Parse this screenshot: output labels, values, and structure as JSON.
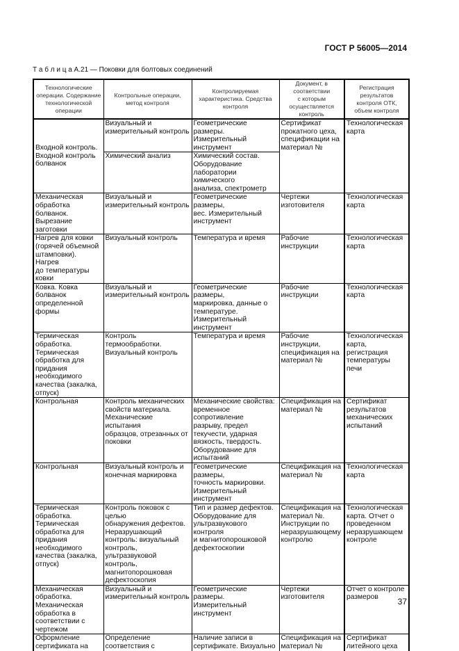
{
  "header": {
    "standard": "ГОСТ Р 56005—2014"
  },
  "caption": "Т а б л и ц а А.21 — Поковки для болтовых соединений",
  "columns": [
    "Технологические\nоперации. Содержание\nтехнологической\nоперации",
    "Контрольные операции,\nметод контроля",
    "Контролируемая\nхарактеристика. Средства\nконтроля",
    "Документ, в\nсоответствии\nс которым\nосуществляется\nконтроль",
    "Регистрация\nрезультатов\nконтроля ОТК,\nобъем контроля"
  ],
  "row1": {
    "operation": "Входной контроль.\nВходной контроль\nболванок",
    "sub": [
      {
        "method": "Визуальный и\nизмерительный контроль",
        "characteristic": "Геометрические размеры.\nИзмерительный\nинструмент"
      },
      {
        "method": "Химический анализ",
        "characteristic": "Химический состав.\nОборудование\nлаборатории химического\nанализа, спектрометр"
      }
    ],
    "document": "Сертификат\nпрокатного цеха,\nспецификации на\nматериал №",
    "registration": "Технологическая\nкарта"
  },
  "rows": [
    {
      "operation": "Механическая\nобработка болванок.\nВырезание заготовки",
      "method": "Визуальный и\nизмерительный контроль",
      "characteristic": "Геометрические размеры,\nвес. Измерительный\nинструмент",
      "document": "Чертежи\nизготовителя",
      "registration": "Технологическая\nкарта"
    },
    {
      "operation": "Нагрев для ковки\n(горячей объемной\nштамповки). Нагрев\nдо температуры\nковки",
      "method": "Визуальный контроль",
      "characteristic": "Температура и время",
      "document": "Рабочие\nинструкции",
      "registration": "Технологическая\nкарта"
    },
    {
      "operation": "Ковка. Ковка\nболванок\nопределенной\nформы",
      "method": "Визуальный и\nизмерительный контроль",
      "characteristic": "Геометрические размеры,\nмаркировка, данные о\nтемпературе.\nИзмерительный\nинструмент",
      "document": "Рабочие\nинструкции",
      "registration": "Технологическая\nкарта"
    },
    {
      "operation": "Термическая\nобработка.\nТермическая\nобработка для\nпридания\nнеобходимого\nкачества (закалка,\nотпуск)",
      "method": "Контроль\nтермообработки.\nВизуальный контроль",
      "characteristic": "Температура и время",
      "document": "Рабочие\nинструкции,\nспецификация на\nматериал №",
      "registration": "Технологическая\nкарта,\nрегистрация\nтемпературы\nпечи"
    },
    {
      "operation": "Контрольная",
      "method": "Контроль механических\nсвойств материала.\nМеханические испытания\nобразцов, отрезанных от\nпоковки",
      "characteristic": "Механические свойства:\nвременное сопротивление\nразрыву, предел\nтекучести, ударная\nвязкость, твердость.\nОборудование для\nиспытаний",
      "document": "Спецификация на\nматериал №",
      "registration": "Сертификат\nрезультатов\nмеханических\nиспытаний"
    },
    {
      "operation": "Контрольная",
      "method": "Визуальный контроль и\nконечная маркировка",
      "characteristic": "Геометрические размеры,\nточность маркировки.\nИзмерительный\nинструмент",
      "document": "Спецификация на\nматериал №",
      "registration": "Технологическая\nкарта"
    },
    {
      "operation": "Термическая\nобработка.\nТермическая\nобработка для\nпридания\nнеобходимого\nкачества (закалка,\nотпуск)",
      "method": "Контроль поковок с целью\nобнаружения дефектов.\nНеразрушающий\nконтроль: визуальный\nконтроль, ультразвуковой\nконтроль,\nмагнитопорошковая\nдефектоскопия",
      "characteristic": "Тип и размер дефектов.\nОборудование для\nультразвукового контроля\nи магнитопорошковой\nдефектоскопии",
      "document": "Спецификация на\nматериал №.\nИнструкции по\nнеразрушающему\nконтролю",
      "registration": "Технологическая\nкарта. Отчет о\nпроведенном\nнеразрушающем\nконтроле"
    },
    {
      "operation": "Механическая\nобработка.\nМеханическая\nобработка в\nсоответствии с\nчертежом",
      "method": "Визуальный и\nизмерительный контроль",
      "characteristic": "Геометрические размеры.\nИзмерительный\nинструмент",
      "document": "Чертежи\nизготовителя",
      "registration": "Отчет о контроле\nразмеров"
    },
    {
      "operation": "Оформление\nсертификата на\nпоковку. Заполнение\nсертификата",
      "method": "Определение\nсоответствия с\nтребованиями\nсертификата",
      "characteristic": "Наличие записи в\nсертификате. Визуально",
      "document": "Спецификация на\nматериал №",
      "registration": "Сертификат\nлитейного цеха"
    }
  ],
  "page_number": "37"
}
